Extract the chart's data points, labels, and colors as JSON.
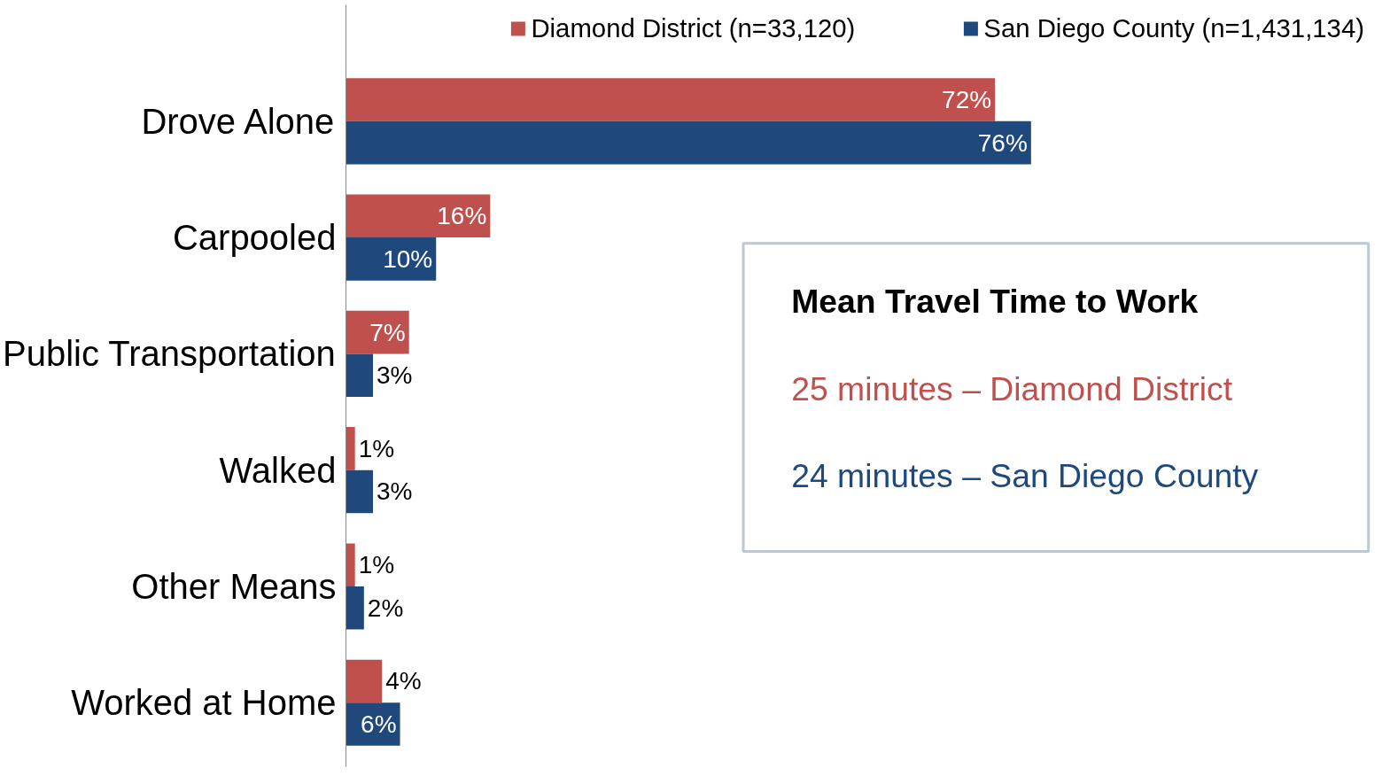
{
  "chart_data": {
    "type": "bar",
    "orientation": "horizontal",
    "categories": [
      "Drove Alone",
      "Carpooled",
      "Public Transportation",
      "Walked",
      "Other Means",
      "Worked at Home"
    ],
    "series": [
      {
        "name": "Diamond District (n=33,120)",
        "color": "#c0504d",
        "values": [
          72,
          16,
          7,
          1,
          1,
          4
        ],
        "value_labels": [
          "72%",
          "16%",
          "7%",
          "1%",
          "1%",
          "4%"
        ]
      },
      {
        "name": "San Diego County (n=1,431,134)",
        "color": "#1f497d",
        "values": [
          76,
          10,
          3,
          3,
          2,
          6
        ],
        "value_labels": [
          "76%",
          "10%",
          "3%",
          "3%",
          "2%",
          "6%"
        ]
      }
    ],
    "legend": "top",
    "grid": false,
    "annotations": [
      "Mean Travel Time to Work",
      "25 minutes – Diamond District",
      "24 minutes – San Diego County"
    ]
  }
}
